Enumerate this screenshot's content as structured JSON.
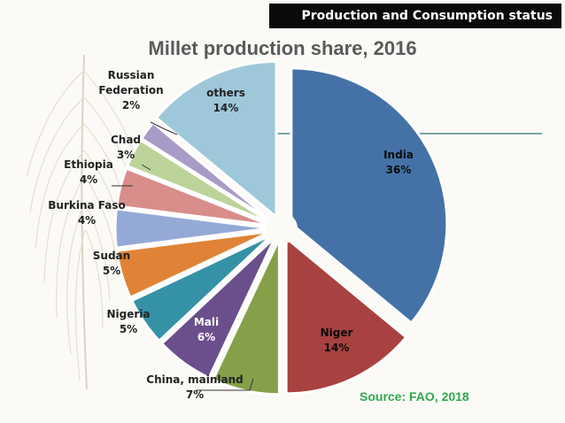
{
  "banner": "Production and Consumption status",
  "source": "Source: FAO, 2018",
  "chart_data": {
    "type": "pie",
    "title": "Millet production share, 2016",
    "slices": [
      {
        "label": "India",
        "value": 36,
        "value_label": "36%",
        "color": "#4472a6"
      },
      {
        "label": "Niger",
        "value": 14,
        "value_label": "14%",
        "color": "#a84240"
      },
      {
        "label": "China, mainland",
        "value": 7,
        "value_label": "7%",
        "color": "#85a049"
      },
      {
        "label": "Mali",
        "value": 6,
        "value_label": "6%",
        "color": "#6a4f8c"
      },
      {
        "label": "Nigeria",
        "value": 5,
        "value_label": "5%",
        "color": "#3592a6"
      },
      {
        "label": "Sudan",
        "value": 5,
        "value_label": "5%",
        "color": "#e08336"
      },
      {
        "label": "Burkina Faso",
        "value": 4,
        "value_label": "4%",
        "color": "#95a9d6"
      },
      {
        "label": "Ethiopia",
        "value": 4,
        "value_label": "4%",
        "color": "#d98d8a"
      },
      {
        "label": "Chad",
        "value": 3,
        "value_label": "3%",
        "color": "#bcd49a"
      },
      {
        "label": "Russian Federation",
        "value": 2,
        "value_label": "2%",
        "color": "#a99bc7"
      },
      {
        "label": "others",
        "value": 14,
        "value_label": "14%",
        "color": "#9ec8d9"
      }
    ]
  }
}
